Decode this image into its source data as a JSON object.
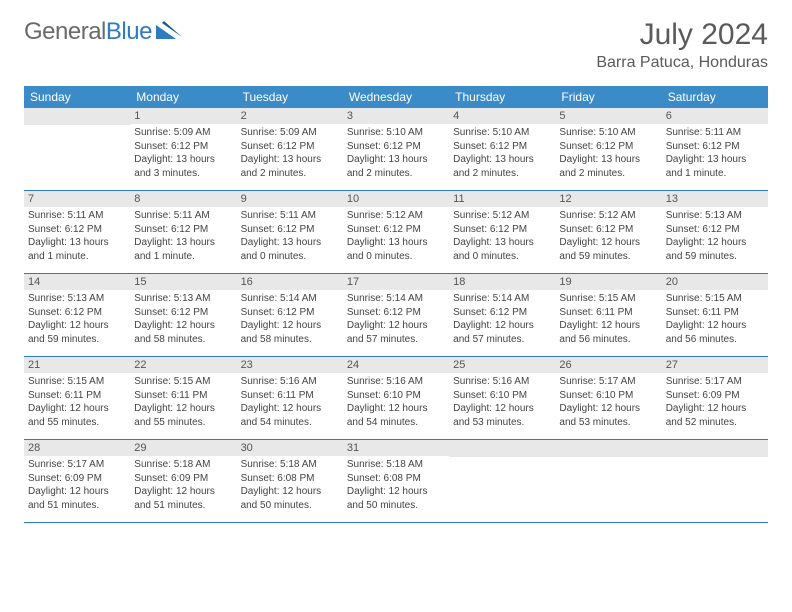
{
  "logo": {
    "text1": "General",
    "text2": "Blue"
  },
  "title": "July 2024",
  "location": "Barra Patuca, Honduras",
  "colors": {
    "header_bg": "#3b8bc9",
    "header_text": "#ffffff",
    "date_bg": "#e8e8e8",
    "row_border": "#2f7bbf",
    "logo_gray": "#6a6a6a",
    "logo_blue": "#2f7bbf",
    "body_text": "#444444"
  },
  "day_names": [
    "Sunday",
    "Monday",
    "Tuesday",
    "Wednesday",
    "Thursday",
    "Friday",
    "Saturday"
  ],
  "weeks": [
    [
      {
        "date": "",
        "sunrise": "",
        "sunset": "",
        "daylight": ""
      },
      {
        "date": "1",
        "sunrise": "Sunrise: 5:09 AM",
        "sunset": "Sunset: 6:12 PM",
        "daylight": "Daylight: 13 hours and 3 minutes."
      },
      {
        "date": "2",
        "sunrise": "Sunrise: 5:09 AM",
        "sunset": "Sunset: 6:12 PM",
        "daylight": "Daylight: 13 hours and 2 minutes."
      },
      {
        "date": "3",
        "sunrise": "Sunrise: 5:10 AM",
        "sunset": "Sunset: 6:12 PM",
        "daylight": "Daylight: 13 hours and 2 minutes."
      },
      {
        "date": "4",
        "sunrise": "Sunrise: 5:10 AM",
        "sunset": "Sunset: 6:12 PM",
        "daylight": "Daylight: 13 hours and 2 minutes."
      },
      {
        "date": "5",
        "sunrise": "Sunrise: 5:10 AM",
        "sunset": "Sunset: 6:12 PM",
        "daylight": "Daylight: 13 hours and 2 minutes."
      },
      {
        "date": "6",
        "sunrise": "Sunrise: 5:11 AM",
        "sunset": "Sunset: 6:12 PM",
        "daylight": "Daylight: 13 hours and 1 minute."
      }
    ],
    [
      {
        "date": "7",
        "sunrise": "Sunrise: 5:11 AM",
        "sunset": "Sunset: 6:12 PM",
        "daylight": "Daylight: 13 hours and 1 minute."
      },
      {
        "date": "8",
        "sunrise": "Sunrise: 5:11 AM",
        "sunset": "Sunset: 6:12 PM",
        "daylight": "Daylight: 13 hours and 1 minute."
      },
      {
        "date": "9",
        "sunrise": "Sunrise: 5:11 AM",
        "sunset": "Sunset: 6:12 PM",
        "daylight": "Daylight: 13 hours and 0 minutes."
      },
      {
        "date": "10",
        "sunrise": "Sunrise: 5:12 AM",
        "sunset": "Sunset: 6:12 PM",
        "daylight": "Daylight: 13 hours and 0 minutes."
      },
      {
        "date": "11",
        "sunrise": "Sunrise: 5:12 AM",
        "sunset": "Sunset: 6:12 PM",
        "daylight": "Daylight: 13 hours and 0 minutes."
      },
      {
        "date": "12",
        "sunrise": "Sunrise: 5:12 AM",
        "sunset": "Sunset: 6:12 PM",
        "daylight": "Daylight: 12 hours and 59 minutes."
      },
      {
        "date": "13",
        "sunrise": "Sunrise: 5:13 AM",
        "sunset": "Sunset: 6:12 PM",
        "daylight": "Daylight: 12 hours and 59 minutes."
      }
    ],
    [
      {
        "date": "14",
        "sunrise": "Sunrise: 5:13 AM",
        "sunset": "Sunset: 6:12 PM",
        "daylight": "Daylight: 12 hours and 59 minutes."
      },
      {
        "date": "15",
        "sunrise": "Sunrise: 5:13 AM",
        "sunset": "Sunset: 6:12 PM",
        "daylight": "Daylight: 12 hours and 58 minutes."
      },
      {
        "date": "16",
        "sunrise": "Sunrise: 5:14 AM",
        "sunset": "Sunset: 6:12 PM",
        "daylight": "Daylight: 12 hours and 58 minutes."
      },
      {
        "date": "17",
        "sunrise": "Sunrise: 5:14 AM",
        "sunset": "Sunset: 6:12 PM",
        "daylight": "Daylight: 12 hours and 57 minutes."
      },
      {
        "date": "18",
        "sunrise": "Sunrise: 5:14 AM",
        "sunset": "Sunset: 6:12 PM",
        "daylight": "Daylight: 12 hours and 57 minutes."
      },
      {
        "date": "19",
        "sunrise": "Sunrise: 5:15 AM",
        "sunset": "Sunset: 6:11 PM",
        "daylight": "Daylight: 12 hours and 56 minutes."
      },
      {
        "date": "20",
        "sunrise": "Sunrise: 5:15 AM",
        "sunset": "Sunset: 6:11 PM",
        "daylight": "Daylight: 12 hours and 56 minutes."
      }
    ],
    [
      {
        "date": "21",
        "sunrise": "Sunrise: 5:15 AM",
        "sunset": "Sunset: 6:11 PM",
        "daylight": "Daylight: 12 hours and 55 minutes."
      },
      {
        "date": "22",
        "sunrise": "Sunrise: 5:15 AM",
        "sunset": "Sunset: 6:11 PM",
        "daylight": "Daylight: 12 hours and 55 minutes."
      },
      {
        "date": "23",
        "sunrise": "Sunrise: 5:16 AM",
        "sunset": "Sunset: 6:11 PM",
        "daylight": "Daylight: 12 hours and 54 minutes."
      },
      {
        "date": "24",
        "sunrise": "Sunrise: 5:16 AM",
        "sunset": "Sunset: 6:10 PM",
        "daylight": "Daylight: 12 hours and 54 minutes."
      },
      {
        "date": "25",
        "sunrise": "Sunrise: 5:16 AM",
        "sunset": "Sunset: 6:10 PM",
        "daylight": "Daylight: 12 hours and 53 minutes."
      },
      {
        "date": "26",
        "sunrise": "Sunrise: 5:17 AM",
        "sunset": "Sunset: 6:10 PM",
        "daylight": "Daylight: 12 hours and 53 minutes."
      },
      {
        "date": "27",
        "sunrise": "Sunrise: 5:17 AM",
        "sunset": "Sunset: 6:09 PM",
        "daylight": "Daylight: 12 hours and 52 minutes."
      }
    ],
    [
      {
        "date": "28",
        "sunrise": "Sunrise: 5:17 AM",
        "sunset": "Sunset: 6:09 PM",
        "daylight": "Daylight: 12 hours and 51 minutes."
      },
      {
        "date": "29",
        "sunrise": "Sunrise: 5:18 AM",
        "sunset": "Sunset: 6:09 PM",
        "daylight": "Daylight: 12 hours and 51 minutes."
      },
      {
        "date": "30",
        "sunrise": "Sunrise: 5:18 AM",
        "sunset": "Sunset: 6:08 PM",
        "daylight": "Daylight: 12 hours and 50 minutes."
      },
      {
        "date": "31",
        "sunrise": "Sunrise: 5:18 AM",
        "sunset": "Sunset: 6:08 PM",
        "daylight": "Daylight: 12 hours and 50 minutes."
      },
      {
        "date": "",
        "sunrise": "",
        "sunset": "",
        "daylight": ""
      },
      {
        "date": "",
        "sunrise": "",
        "sunset": "",
        "daylight": ""
      },
      {
        "date": "",
        "sunrise": "",
        "sunset": "",
        "daylight": ""
      }
    ]
  ]
}
